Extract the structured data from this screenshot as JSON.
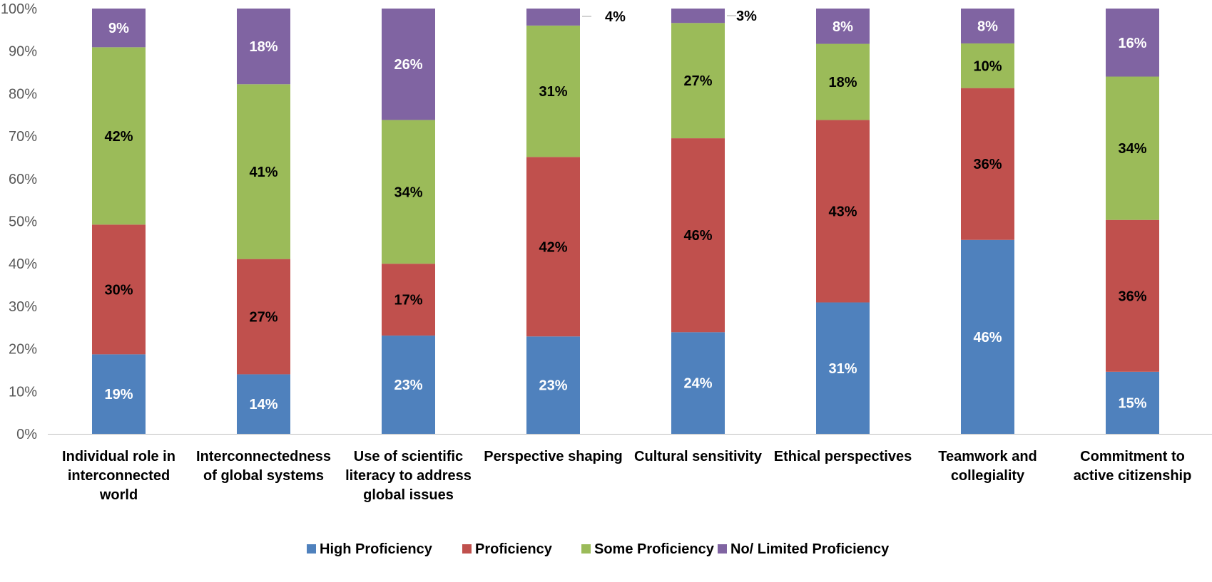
{
  "chart_data": {
    "type": "bar",
    "stacked": true,
    "percent_stacked": true,
    "categories": [
      [
        "Individual role in",
        "interconnected",
        "world"
      ],
      [
        "Interconnectedness",
        "of global systems"
      ],
      [
        "Use of scientific",
        "literacy to address",
        "global issues"
      ],
      [
        "Perspective shaping"
      ],
      [
        "Cultural sensitivity"
      ],
      [
        "Ethical perspectives"
      ],
      [
        "Teamwork and",
        "collegiality"
      ],
      [
        "Commitment to",
        "active citizenship"
      ]
    ],
    "series": [
      {
        "name": "High Proficiency",
        "color": "#4F81BD",
        "label_color": "#ffffff",
        "values": [
          18.7,
          14,
          23.1,
          22.9,
          23.9,
          30.9,
          45.6,
          14.6
        ],
        "labels": [
          "19%",
          "14%",
          "23%",
          "23%",
          "24%",
          "31%",
          "46%",
          "15%"
        ]
      },
      {
        "name": "Proficiency",
        "color": "#C0504D",
        "label_color": "#000000",
        "values": [
          30.5,
          27.1,
          16.9,
          42.2,
          45.6,
          42.9,
          35.7,
          35.7
        ],
        "labels": [
          "30%",
          "27%",
          "17%",
          "42%",
          "46%",
          "43%",
          "36%",
          "36%"
        ]
      },
      {
        "name": "Some Proficiency",
        "color": "#9BBB59",
        "label_color": "#000000",
        "values": [
          41.7,
          41.1,
          33.8,
          30.9,
          27.1,
          17.9,
          10.5,
          33.7
        ],
        "labels": [
          "42%",
          "41%",
          "34%",
          "31%",
          "27%",
          "18%",
          "10%",
          "34%"
        ]
      },
      {
        "name": "No/ Limited Proficiency",
        "color": "#8064A2",
        "label_color": "#ffffff",
        "values": [
          9.1,
          17.8,
          26.2,
          4,
          3.4,
          8.3,
          8.2,
          16
        ],
        "labels": [
          "9%",
          "18%",
          "26%",
          "4%",
          "3%",
          "8%",
          "8%",
          "16%"
        ]
      }
    ],
    "outside_labels": [
      3,
      4
    ],
    "y_ticks": [
      "0%",
      "10%",
      "20%",
      "30%",
      "40%",
      "50%",
      "60%",
      "70%",
      "80%",
      "90%",
      "100%"
    ],
    "ylim": [
      0,
      100
    ],
    "grid": false,
    "legend_position": "bottom"
  }
}
